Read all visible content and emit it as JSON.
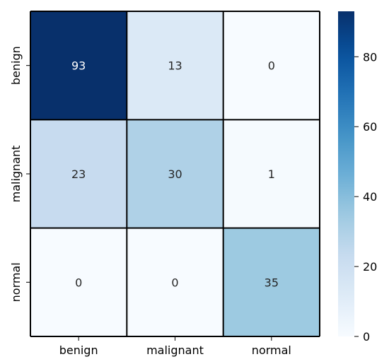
{
  "chart_data": {
    "type": "heatmap",
    "x_categories": [
      "benign",
      "malignant",
      "normal"
    ],
    "y_categories": [
      "benign",
      "malignant",
      "normal"
    ],
    "values": [
      [
        93,
        13,
        0
      ],
      [
        23,
        30,
        1
      ],
      [
        0,
        0,
        35
      ]
    ],
    "colorbar": {
      "min": 0,
      "max": 93,
      "ticks": [
        0,
        20,
        40,
        60,
        80
      ],
      "colormap": "Blues"
    },
    "title": "",
    "xlabel": "",
    "ylabel": ""
  }
}
